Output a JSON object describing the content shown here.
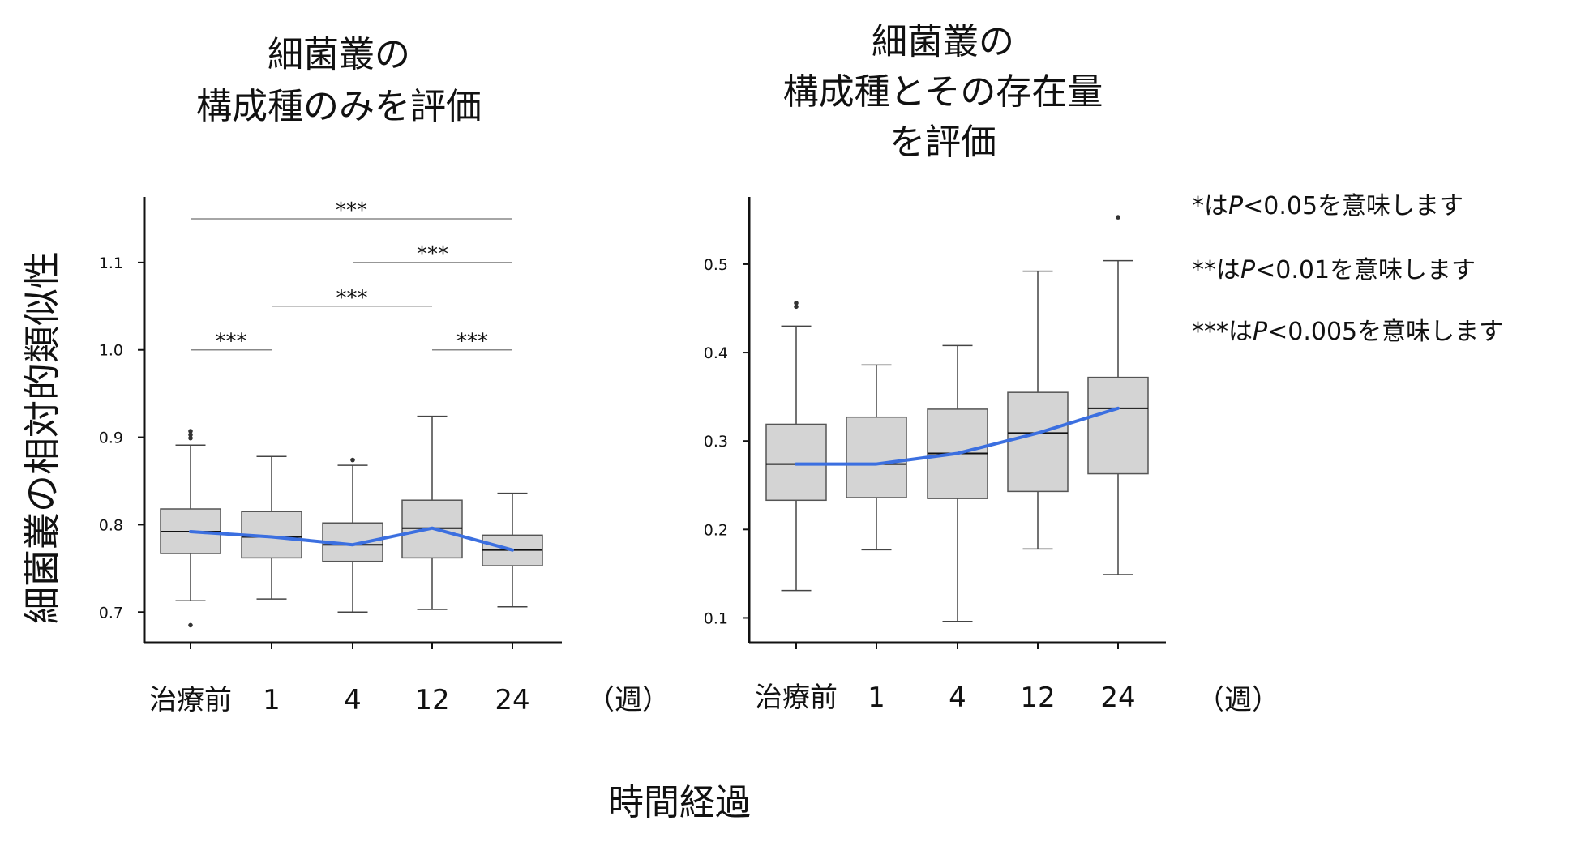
{
  "y_axis_label": "細菌叢の相対的類似性",
  "x_axis_label": "時間経過",
  "unit_label": "（週）",
  "notes": [
    {
      "stars": "*",
      "mid": "は",
      "p": "P",
      "rest": "<0.05を意味します"
    },
    {
      "stars": "**",
      "mid": "は",
      "p": "P",
      "rest": "<0.01を意味します"
    },
    {
      "stars": "***",
      "mid": "は",
      "p": "P",
      "rest": "<0.005を意味します"
    }
  ],
  "colors": {
    "box_fill": "#d4d4d4",
    "trend": "#3b6fe0",
    "axis": "#111111",
    "bracket": "#888888"
  },
  "chart_data": [
    {
      "type": "box",
      "title_lines": [
        "細菌叢の",
        "構成種のみを評価"
      ],
      "categories": [
        "治療前",
        "1",
        "4",
        "12",
        "24"
      ],
      "ylim": [
        0.665,
        1.175
      ],
      "yticks": [
        0.7,
        0.8,
        0.9,
        1.0,
        1.1
      ],
      "ytick_labels": [
        "0.7",
        "0.8",
        "0.9",
        "1.0",
        "1.1"
      ],
      "boxes": [
        {
          "whisker_low": 0.713,
          "q1": 0.767,
          "median": 0.792,
          "q3": 0.818,
          "whisker_high": 0.891,
          "outliers": [
            0.685,
            0.899,
            0.903,
            0.907
          ]
        },
        {
          "whisker_low": 0.715,
          "q1": 0.762,
          "median": 0.786,
          "q3": 0.815,
          "whisker_high": 0.878,
          "outliers": []
        },
        {
          "whisker_low": 0.7,
          "q1": 0.758,
          "median": 0.777,
          "q3": 0.802,
          "whisker_high": 0.868,
          "outliers": [
            0.874
          ]
        },
        {
          "whisker_low": 0.703,
          "q1": 0.762,
          "median": 0.796,
          "q3": 0.828,
          "whisker_high": 0.924,
          "outliers": []
        },
        {
          "whisker_low": 0.706,
          "q1": 0.753,
          "median": 0.771,
          "q3": 0.788,
          "whisker_high": 0.836,
          "outliers": []
        }
      ],
      "trend": [
        0.792,
        0.786,
        0.777,
        0.796,
        0.771
      ],
      "significance": [
        {
          "from": 0,
          "to": 4,
          "y": 1.15,
          "label": "***"
        },
        {
          "from": 2,
          "to": 4,
          "y": 1.1,
          "label": "***"
        },
        {
          "from": 1,
          "to": 3,
          "y": 1.05,
          "label": "***"
        },
        {
          "from": 0,
          "to": 1,
          "y": 1.0,
          "label": "***"
        },
        {
          "from": 3,
          "to": 4,
          "y": 1.0,
          "label": "***"
        }
      ]
    },
    {
      "type": "box",
      "title_lines": [
        "細菌叢の",
        "構成種とその存在量",
        "を評価"
      ],
      "categories": [
        "治療前",
        "1",
        "4",
        "12",
        "24"
      ],
      "ylim": [
        0.072,
        0.576
      ],
      "yticks": [
        0.1,
        0.2,
        0.3,
        0.4,
        0.5
      ],
      "ytick_labels": [
        "0.1",
        "0.2",
        "0.3",
        "0.4",
        "0.5"
      ],
      "boxes": [
        {
          "whisker_low": 0.131,
          "q1": 0.233,
          "median": 0.274,
          "q3": 0.319,
          "whisker_high": 0.43,
          "outliers": [
            0.452,
            0.456
          ]
        },
        {
          "whisker_low": 0.177,
          "q1": 0.236,
          "median": 0.274,
          "q3": 0.327,
          "whisker_high": 0.386,
          "outliers": []
        },
        {
          "whisker_low": 0.096,
          "q1": 0.235,
          "median": 0.286,
          "q3": 0.336,
          "whisker_high": 0.408,
          "outliers": []
        },
        {
          "whisker_low": 0.178,
          "q1": 0.243,
          "median": 0.309,
          "q3": 0.355,
          "whisker_high": 0.492,
          "outliers": []
        },
        {
          "whisker_low": 0.149,
          "q1": 0.263,
          "median": 0.337,
          "q3": 0.372,
          "whisker_high": 0.504,
          "outliers": [
            0.553
          ]
        }
      ],
      "trend": [
        0.274,
        0.274,
        0.286,
        0.309,
        0.337
      ],
      "significance": []
    }
  ]
}
